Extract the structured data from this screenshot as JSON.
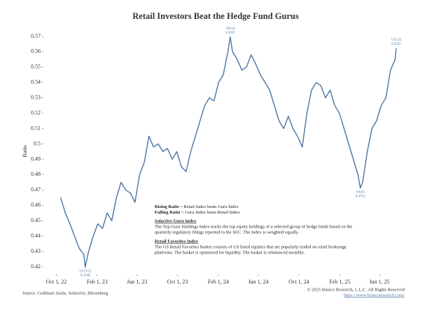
{
  "chart_data": {
    "type": "line",
    "title": "Retail Investors Beat the Hedge Fund Gurus",
    "ylabel": "Ratio",
    "x": [
      "2022-10-14",
      "2022-10-28",
      "2022-11-11",
      "2022-11-25",
      "2022-12-09",
      "2022-12-23",
      "2022-12-27",
      "2023-01-06",
      "2023-01-20",
      "2023-02-03",
      "2023-02-17",
      "2023-03-03",
      "2023-03-17",
      "2023-03-31",
      "2023-04-14",
      "2023-04-28",
      "2023-05-12",
      "2023-05-26",
      "2023-06-09",
      "2023-06-23",
      "2023-07-07",
      "2023-07-21",
      "2023-08-04",
      "2023-08-18",
      "2023-09-01",
      "2023-09-15",
      "2023-09-29",
      "2023-10-13",
      "2023-10-27",
      "2023-11-10",
      "2023-11-24",
      "2023-12-08",
      "2023-12-22",
      "2024-01-05",
      "2024-01-19",
      "2024-02-02",
      "2024-02-16",
      "2024-03-01",
      "2024-03-08",
      "2024-03-15",
      "2024-03-29",
      "2024-04-12",
      "2024-04-26",
      "2024-05-10",
      "2024-05-24",
      "2024-06-07",
      "2024-06-21",
      "2024-07-05",
      "2024-07-19",
      "2024-08-02",
      "2024-08-16",
      "2024-08-30",
      "2024-09-13",
      "2024-09-27",
      "2024-10-11",
      "2024-10-25",
      "2024-11-08",
      "2024-11-22",
      "2024-12-06",
      "2024-12-20",
      "2025-01-03",
      "2025-01-17",
      "2025-01-31",
      "2025-02-14",
      "2025-02-28",
      "2025-03-14",
      "2025-03-28",
      "2025-04-04",
      "2025-04-11",
      "2025-04-25",
      "2025-05-09",
      "2025-05-23",
      "2025-06-06",
      "2025-06-20",
      "2025-07-04",
      "2025-07-18",
      "2025-07-21"
    ],
    "series": [
      {
        "name": "Ratio",
        "color": "#4a74a0",
        "values": [
          0.465,
          0.455,
          0.448,
          0.44,
          0.432,
          0.428,
          0.4198,
          0.43,
          0.44,
          0.448,
          0.445,
          0.455,
          0.45,
          0.465,
          0.475,
          0.47,
          0.468,
          0.462,
          0.48,
          0.488,
          0.505,
          0.498,
          0.5,
          0.495,
          0.497,
          0.49,
          0.495,
          0.485,
          0.482,
          0.495,
          0.505,
          0.515,
          0.525,
          0.53,
          0.528,
          0.54,
          0.545,
          0.56,
          0.5697,
          0.56,
          0.555,
          0.548,
          0.55,
          0.558,
          0.552,
          0.545,
          0.54,
          0.535,
          0.525,
          0.515,
          0.51,
          0.518,
          0.51,
          0.505,
          0.498,
          0.52,
          0.535,
          0.54,
          0.538,
          0.53,
          0.535,
          0.525,
          0.52,
          0.51,
          0.5,
          0.49,
          0.48,
          0.4713,
          0.475,
          0.495,
          0.51,
          0.515,
          0.525,
          0.53,
          0.548,
          0.555,
          0.5622
        ]
      }
    ],
    "xlim": [
      "2022-08-23",
      "2025-08-20"
    ],
    "xticks": [
      {
        "value": "2022-10-01",
        "label": "Oct 1, 22"
      },
      {
        "value": "2023-02-01",
        "label": "Feb 1, 23"
      },
      {
        "value": "2023-06-01",
        "label": "Jun 1, 23"
      },
      {
        "value": "2023-10-01",
        "label": "Oct 1, 23"
      },
      {
        "value": "2024-02-01",
        "label": "Feb 1, 24"
      },
      {
        "value": "2024-06-01",
        "label": "Jun 1, 24"
      },
      {
        "value": "2024-10-01",
        "label": "Oct 1, 24"
      },
      {
        "value": "2025-02-01",
        "label": "Feb 1, 25"
      },
      {
        "value": "2025-06-01",
        "label": "Jun 1, 25"
      }
    ],
    "ylim": [
      0.415,
      0.575
    ],
    "yticks": [
      0.42,
      0.43,
      0.44,
      0.45,
      0.46,
      0.47,
      0.48,
      0.49,
      0.5,
      0.51,
      0.52,
      0.53,
      0.54,
      0.55,
      0.56,
      0.57
    ],
    "annotations": [
      {
        "x": "2022-12-27",
        "date": "12/27/22",
        "value": "0.4198",
        "pos": "below"
      },
      {
        "x": "2024-03-08",
        "date": "3/8/24",
        "value": "0.5697",
        "pos": "above"
      },
      {
        "x": "2025-04-04",
        "date": "4/4/25",
        "value": "0.4713",
        "pos": "below"
      },
      {
        "x": "2025-07-21",
        "date": "7/21/25",
        "value": "0.5622",
        "pos": "above"
      }
    ],
    "notes": {
      "rising_bold": "Rising Ratio",
      "rising_text": " = Retail Index beats Guru Index",
      "falling_bold": "Falling Ratio",
      "falling_text": " = Guru Index beats Retail Index",
      "guru_title": "Solactive Guru Index",
      "guru_lines": [
        "The Top Guru Holdings Index tracks the top equity holdings of a selected group of hedge funds based on the",
        "quarterly regulatory filings reported to the SEC. The Index is weighted equally."
      ],
      "retail_title": "Retail Favorites Index",
      "retail_lines": [
        "The GS Retail Favorites basket consists of US listed equities that are popularly traded on retail brokerage",
        "platforms. The basket is optimized for liquidity. The basket is rebalanced monthly."
      ]
    },
    "source": "Source: Goldman Sachs, Solactive, Bloomberg",
    "copyright": "© 2025 Bianco Research, L.L.C. All Rights Reserved",
    "url": "https://www.biancoresearch.com/"
  }
}
